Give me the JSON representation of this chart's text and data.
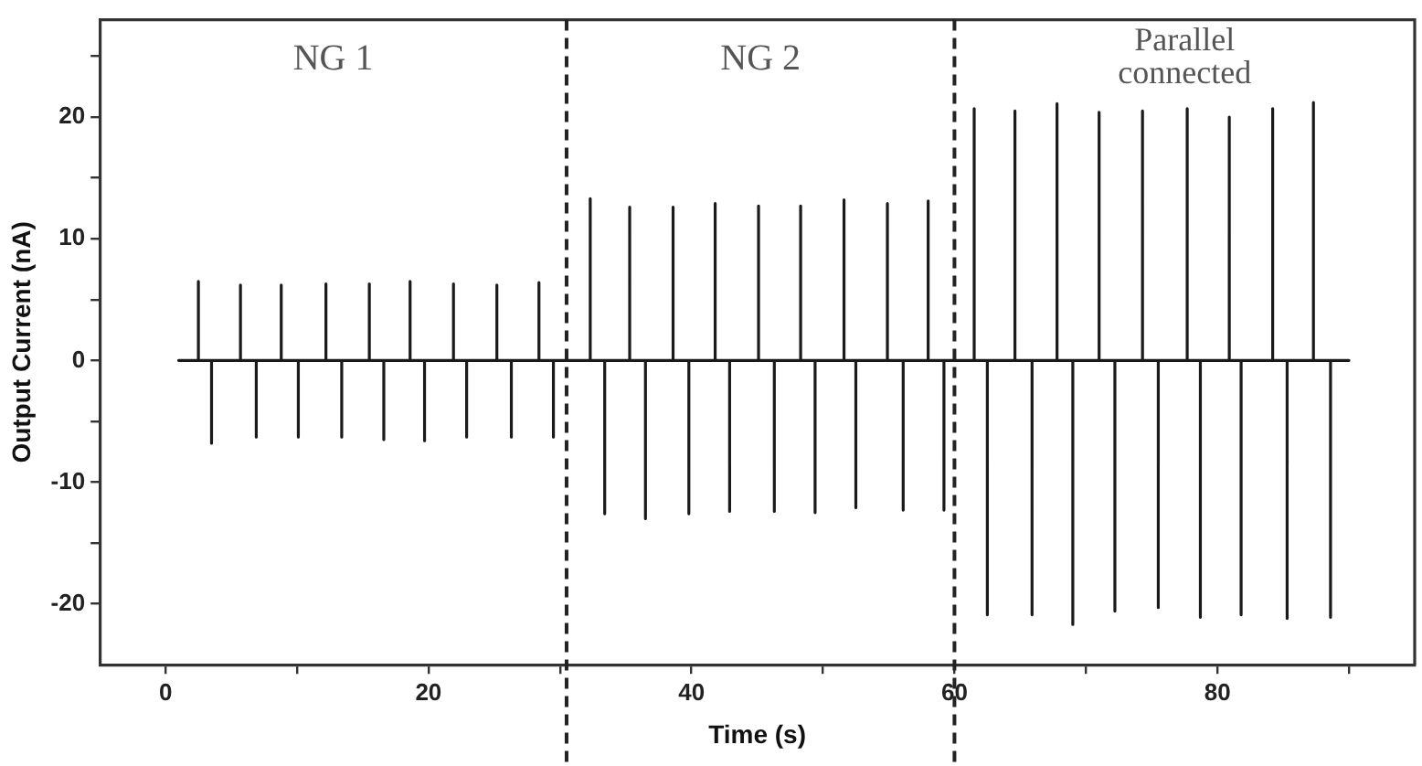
{
  "chart_data": {
    "type": "line",
    "xlabel": "Time (s)",
    "ylabel": "Output Current (nA)",
    "xlim": [
      -5,
      95
    ],
    "ylim": [
      -25,
      28
    ],
    "xticks": [
      0,
      {
        "value": 10,
        "label": null
      },
      20,
      {
        "value": 30,
        "label": null
      },
      40,
      {
        "value": 50,
        "label": null
      },
      60,
      {
        "value": 70,
        "label": null
      },
      80,
      {
        "value": 90,
        "label": null
      }
    ],
    "yticks": [
      -20,
      {
        "value": -15,
        "label": null
      },
      -10,
      {
        "value": -5,
        "label": null
      },
      0,
      {
        "value": 5,
        "label": null
      },
      10,
      {
        "value": 15,
        "label": null
      },
      20,
      {
        "value": 25,
        "label": null
      }
    ],
    "grid": false,
    "legend": false,
    "marker": "none",
    "line_style": "solid",
    "series": [
      {
        "color": "#1a1a1a",
        "x": [
          1,
          2.5,
          2.5,
          2.5,
          3.5,
          3.5,
          3.5,
          5.7,
          5.7,
          5.7,
          6.9,
          6.9,
          6.9,
          8.8,
          8.8,
          8.8,
          10.1,
          10.1,
          10.1,
          12.2,
          12.2,
          12.2,
          13.4,
          13.4,
          13.4,
          15.5,
          15.5,
          15.5,
          16.6,
          16.6,
          16.6,
          18.6,
          18.6,
          18.6,
          19.7,
          19.7,
          19.7,
          21.9,
          21.9,
          21.9,
          22.9,
          22.9,
          22.9,
          25.2,
          25.2,
          25.2,
          26.3,
          26.3,
          26.3,
          28.4,
          28.4,
          28.4,
          29.5,
          29.5,
          29.5,
          32.3,
          32.3,
          32.3,
          33.4,
          33.4,
          33.4,
          35.3,
          35.3,
          35.3,
          36.5,
          36.5,
          36.5,
          38.6,
          38.6,
          38.6,
          39.8,
          39.8,
          39.8,
          41.8,
          41.8,
          41.8,
          42.9,
          42.9,
          42.9,
          45.1,
          45.1,
          45.1,
          46.3,
          46.3,
          46.3,
          48.3,
          48.3,
          48.3,
          49.4,
          49.4,
          49.4,
          51.6,
          51.6,
          51.6,
          52.5,
          52.5,
          52.5,
          54.9,
          54.9,
          54.9,
          56.1,
          56.1,
          56.1,
          58,
          58,
          58,
          59.2,
          59.2,
          59.2,
          61.5,
          61.5,
          61.5,
          62.5,
          62.5,
          62.5,
          64.6,
          64.6,
          64.6,
          65.9,
          65.9,
          65.9,
          67.8,
          67.8,
          67.8,
          69,
          69,
          69,
          71,
          71,
          71,
          72.2,
          72.2,
          72.2,
          74.3,
          74.3,
          74.3,
          75.5,
          75.5,
          75.5,
          77.7,
          77.7,
          77.7,
          78.7,
          78.7,
          78.7,
          80.9,
          80.9,
          80.9,
          81.8,
          81.8,
          81.8,
          84.2,
          84.2,
          84.2,
          85.3,
          85.3,
          85.3,
          87.3,
          87.3,
          87.3,
          88.6,
          88.6,
          88.6,
          90
        ],
        "values": [
          0,
          0,
          6.5,
          0,
          0,
          -6.8,
          0,
          0,
          6.2,
          0,
          0,
          -6.3,
          0,
          0,
          6.2,
          0,
          0,
          -6.3,
          0,
          0,
          6.3,
          0,
          0,
          -6.3,
          0,
          0,
          6.3,
          0,
          0,
          -6.5,
          0,
          0,
          6.5,
          0,
          0,
          -6.6,
          0,
          0,
          6.3,
          0,
          0,
          -6.3,
          0,
          0,
          6.2,
          0,
          0,
          -6.3,
          0,
          0,
          6.4,
          0,
          0,
          -6.3,
          0,
          0,
          13.3,
          0,
          0,
          -12.6,
          0,
          0,
          12.6,
          0,
          0,
          -13,
          0,
          0,
          12.6,
          0,
          0,
          -12.6,
          0,
          0,
          12.9,
          0,
          0,
          -12.4,
          0,
          0,
          12.7,
          0,
          0,
          -12.4,
          0,
          0,
          12.7,
          0,
          0,
          -12.5,
          0,
          0,
          13.2,
          0,
          0,
          -12.1,
          0,
          0,
          12.9,
          0,
          0,
          -12.3,
          0,
          0,
          13.1,
          0,
          0,
          -12.3,
          0,
          0,
          20.7,
          0,
          0,
          -20.9,
          0,
          0,
          20.5,
          0,
          0,
          -20.9,
          0,
          0,
          21.1,
          0,
          0,
          -21.7,
          0,
          0,
          20.4,
          0,
          0,
          -20.6,
          0,
          0,
          20.5,
          0,
          0,
          -20.3,
          0,
          0,
          20.7,
          0,
          0,
          -21.1,
          0,
          0,
          20,
          0,
          0,
          -20.9,
          0,
          0,
          20.7,
          0,
          0,
          -21.2,
          0,
          0,
          21.2,
          0,
          0,
          -21.1,
          0,
          0
        ]
      }
    ],
    "ref_lines": [
      {
        "axis": "x",
        "value": 30.5,
        "color": "#222222",
        "line_style": "dashed"
      },
      {
        "axis": "x",
        "value": 60,
        "color": "#222222",
        "line_style": "dashed"
      }
    ],
    "annotations": [
      "NG 1",
      "NG 2",
      "Parallel connected"
    ]
  }
}
